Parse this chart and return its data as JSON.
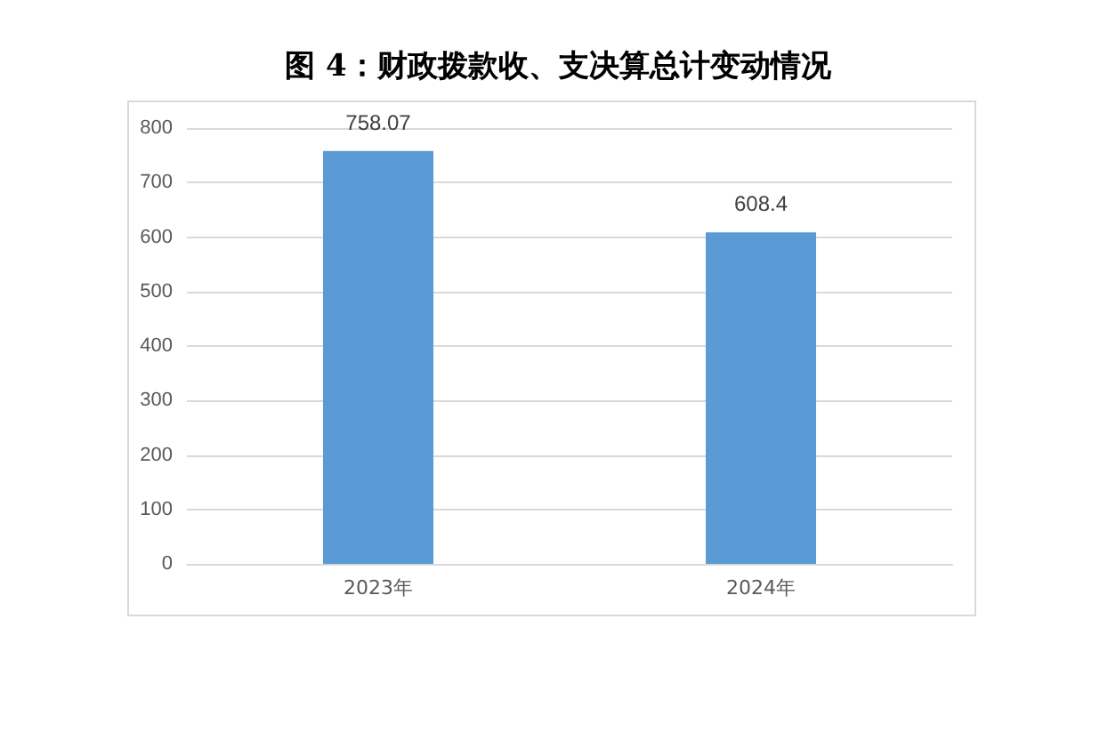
{
  "chart_data": {
    "type": "bar",
    "title": "图 4：财政拨款收、支决算总计变动情况",
    "categories": [
      "2023年",
      "2024年"
    ],
    "values": [
      758.07,
      608.4
    ],
    "color": "#5b9bd5",
    "ylim": [
      0,
      800
    ],
    "yticks": [
      0,
      100,
      200,
      300,
      400,
      500,
      600,
      700,
      800
    ],
    "grid": "y",
    "data_labels": true
  }
}
